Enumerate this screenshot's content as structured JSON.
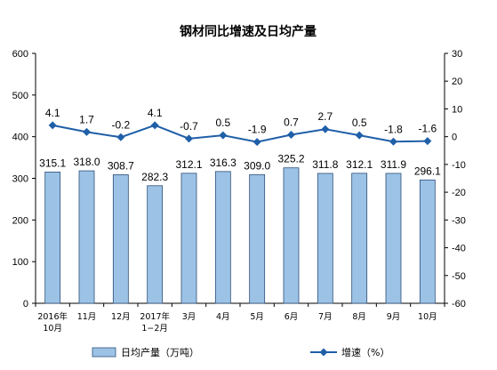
{
  "chart_data": {
    "type": "bar+line",
    "title": "钢材同比增速及日均产量",
    "categories": [
      "2016年\n10月",
      "11月",
      "12月",
      "2017年\n1−2月",
      "3月",
      "4月",
      "5月",
      "6月",
      "7月",
      "8月",
      "9月",
      "10月"
    ],
    "series": [
      {
        "name": "日均产量（万吨）",
        "type": "bar",
        "axis": "left",
        "values": [
          315.1,
          318.0,
          308.7,
          282.3,
          312.1,
          316.3,
          309.0,
          325.2,
          311.8,
          312.1,
          311.9,
          296.1
        ],
        "labels": [
          "315.1",
          "318.0",
          "308.7",
          "282.3",
          "312.1",
          "316.3",
          "309.0",
          "325.2",
          "311.8",
          "312.1",
          "311.9",
          "296.1"
        ],
        "color": "#9cc3e6"
      },
      {
        "name": "增速（%）",
        "type": "line",
        "axis": "right",
        "values": [
          4.1,
          1.7,
          -0.2,
          4.1,
          -0.7,
          0.5,
          -1.9,
          0.7,
          2.7,
          0.5,
          -1.8,
          -1.6
        ],
        "labels": [
          "4.1",
          "1.7",
          "-0.2",
          "4.1",
          "-0.7",
          "0.5",
          "-1.9",
          "0.7",
          "2.7",
          "0.5",
          "-1.8",
          "-1.6"
        ],
        "color": "#1f5fa8"
      }
    ],
    "y_left": {
      "min": 0,
      "max": 600,
      "step": 100
    },
    "y_right": {
      "min": -60,
      "max": 30,
      "step": 10
    },
    "legend_position": "bottom",
    "grid": false
  }
}
